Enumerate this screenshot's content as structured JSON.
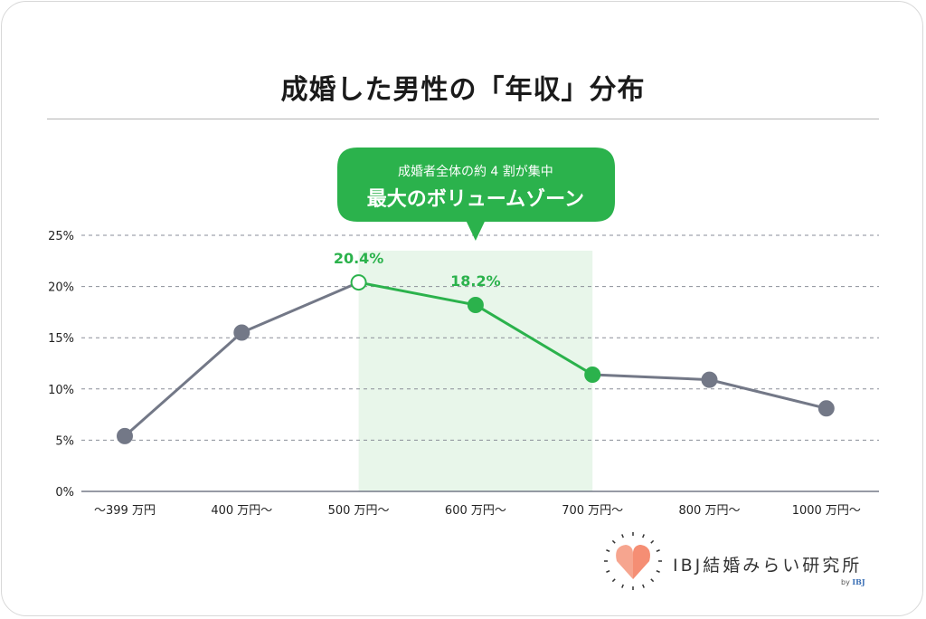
{
  "chart_data": {
    "type": "line",
    "title": "成婚した男性の「年収」分布",
    "categories": [
      "〜399 万円",
      "400 万円〜",
      "500 万円〜",
      "600 万円〜",
      "700 万円〜",
      "800 万円〜",
      "1000 万円〜"
    ],
    "values": [
      5.4,
      15.5,
      20.4,
      18.2,
      11.4,
      10.9,
      8.1
    ],
    "ylim": [
      0,
      25
    ],
    "yticks": [
      "0%",
      "5%",
      "10%",
      "15%",
      "20%",
      "25%"
    ],
    "ytick_values": [
      0,
      5,
      10,
      15,
      20,
      25
    ],
    "grid": true,
    "data_labels": [
      {
        "index": 2,
        "text": "20.4%"
      },
      {
        "index": 3,
        "text": "18.2%"
      }
    ],
    "highlight_range": {
      "from_index": 2,
      "to_index": 4
    },
    "callout": {
      "line1": "成婚者全体の約 4 割が集中",
      "line2": "最大のボリュームゾーン"
    },
    "colors": {
      "base": "#737887",
      "highlight": "#2bb24c",
      "highlight_fill": "#e8f6ea",
      "grid": "#8a8e98"
    }
  },
  "logo": {
    "text": "IBJ結婚みらい研究所",
    "by": "by",
    "brand": "IBJ"
  }
}
